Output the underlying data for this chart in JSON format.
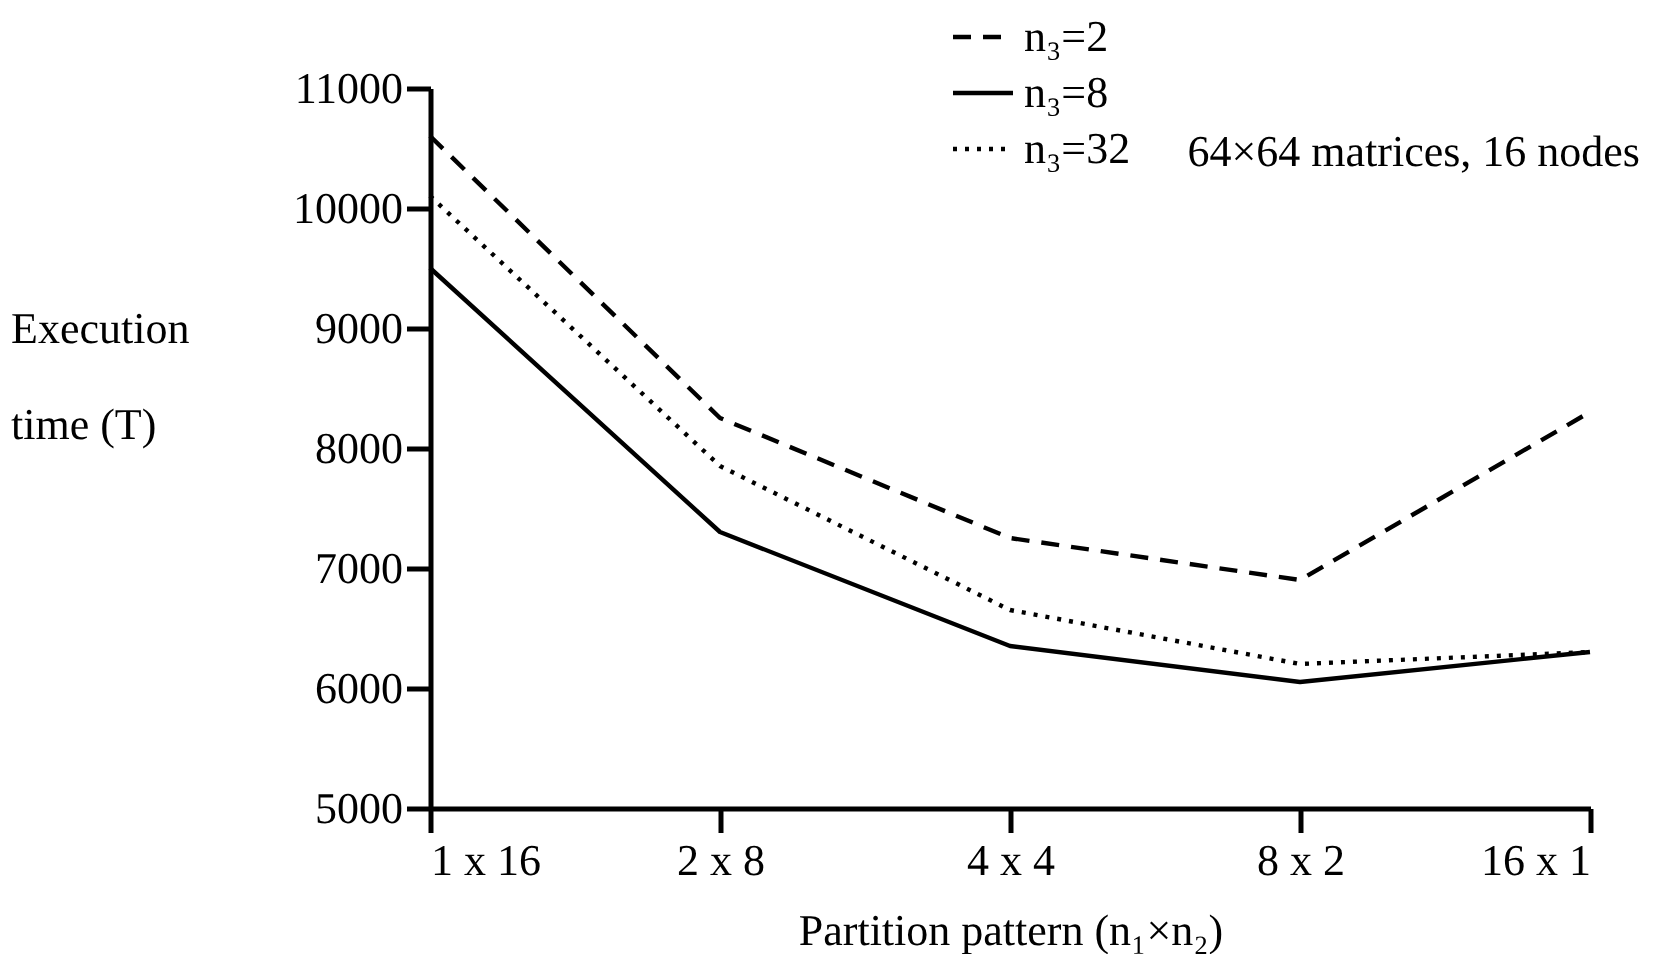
{
  "chart_data": {
    "type": "line",
    "xlabel": "Partition pattern (n₁×n₂)",
    "ylabel": "Execution time (T)",
    "categories": [
      "1 x 16",
      "2 x 8",
      "4 x 4",
      "8 x 2",
      "16 x 1"
    ],
    "series": [
      {
        "name": "n₃=2",
        "color": "#000000",
        "line_style": "dashed",
        "values": [
          10600,
          8250,
          7250,
          6900,
          8300
        ]
      },
      {
        "name": "n₃=8",
        "color": "#000000",
        "line_style": "solid",
        "values": [
          9500,
          7300,
          6350,
          6050,
          6300
        ]
      },
      {
        "name": "n₃=32",
        "color": "#000000",
        "line_style": "dotted",
        "values": [
          10100,
          7850,
          6650,
          6200,
          6300
        ]
      }
    ],
    "ylim": [
      5000,
      11000
    ],
    "yticks": [
      5000,
      6000,
      7000,
      8000,
      9000,
      10000,
      11000
    ],
    "annotations": [
      "64×64 matrices, 16 nodes"
    ],
    "legend": "top right",
    "grid": false,
    "marker": "none"
  }
}
